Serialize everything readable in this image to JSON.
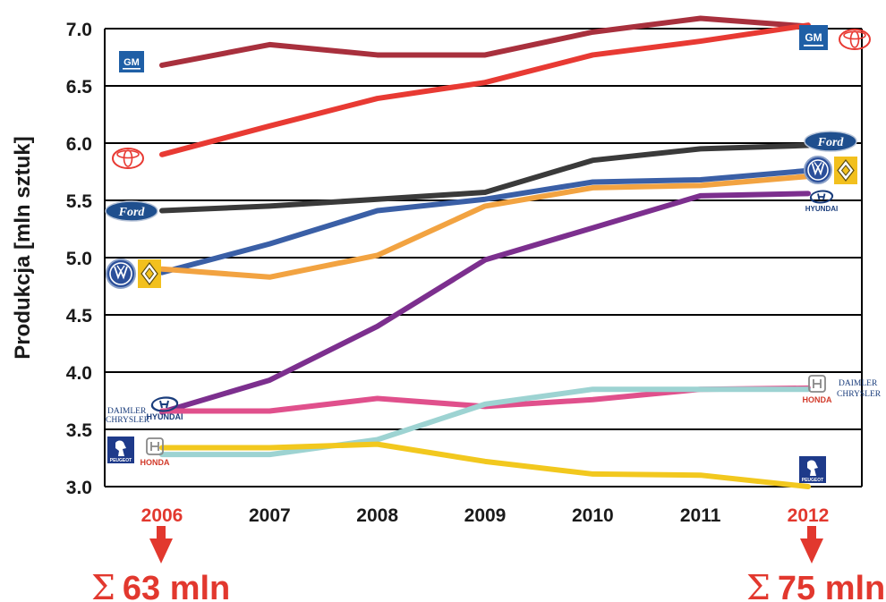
{
  "chart_data": {
    "type": "line",
    "ylabel": "Produkcja [mln sztuk]",
    "xlabel": "",
    "x": [
      2006,
      2007,
      2008,
      2009,
      2010,
      2011,
      2012
    ],
    "x_labels": [
      "2006",
      "2007",
      "2008",
      "2009",
      "2010",
      "2011",
      "2012"
    ],
    "highlight_years": [
      "2006",
      "2012"
    ],
    "y_ticks": [
      "3.0",
      "3.5",
      "4.0",
      "4.5",
      "5.0",
      "5.5",
      "6.0",
      "6.5",
      "7.0"
    ],
    "ylim": [
      3.0,
      7.0
    ],
    "grid": true,
    "series": [
      {
        "key": "gm",
        "color": "#a8303d",
        "values": [
          6.68,
          6.86,
          6.77,
          6.77,
          6.97,
          7.09,
          7.02
        ]
      },
      {
        "key": "toyota",
        "color": "#e83a33",
        "values": [
          5.9,
          6.15,
          6.39,
          6.53,
          6.77,
          6.89,
          7.03
        ]
      },
      {
        "key": "ford",
        "color": "#3a3a3a",
        "values": [
          5.41,
          5.45,
          5.51,
          5.57,
          5.85,
          5.95,
          5.98
        ]
      },
      {
        "key": "volkswagen",
        "color": "#3a5fa6",
        "values": [
          4.87,
          5.12,
          5.41,
          5.51,
          5.66,
          5.68,
          5.76
        ]
      },
      {
        "key": "renault",
        "color": "#f2a341",
        "values": [
          4.9,
          4.83,
          5.02,
          5.45,
          5.61,
          5.63,
          5.71
        ]
      },
      {
        "key": "hyundai",
        "color": "#7c2f8e",
        "values": [
          3.65,
          3.93,
          4.4,
          4.98,
          5.26,
          5.54,
          5.56
        ]
      },
      {
        "key": "daimler-chrysler",
        "color": "#e0508c",
        "values": [
          3.66,
          3.66,
          3.77,
          3.7,
          3.76,
          3.85,
          3.86
        ]
      },
      {
        "key": "honda",
        "color": "#9dd3d2",
        "values": [
          3.28,
          3.28,
          3.41,
          3.72,
          3.85,
          3.85,
          3.85
        ]
      },
      {
        "key": "peugeot",
        "color": "#f2c81e",
        "values": [
          3.34,
          3.34,
          3.37,
          3.22,
          3.11,
          3.1,
          3.0
        ]
      }
    ]
  },
  "summary": {
    "left": {
      "year": "2006",
      "sigma": "Σ",
      "total": "63 mln"
    },
    "right": {
      "year": "2012",
      "sigma": "Σ",
      "total": "75 mln"
    }
  },
  "logos": {
    "gm": "GM",
    "ford": "Ford",
    "hyundai": "HYUNDAI",
    "honda": "HONDA",
    "peugeot": "PEUGEOT",
    "daimler_1": "DAIMLER",
    "daimler_2": "CHRYSLER"
  },
  "colors": {
    "accent_red": "#e2382e",
    "grid": "#000000",
    "ford_blue": "#1f4f8e",
    "gm_blue": "#1f5fa6",
    "hyundai_navy": "#1a3d7c",
    "peugeot_blue": "#1e3a8a",
    "renault_yellow": "#f2c01e"
  }
}
